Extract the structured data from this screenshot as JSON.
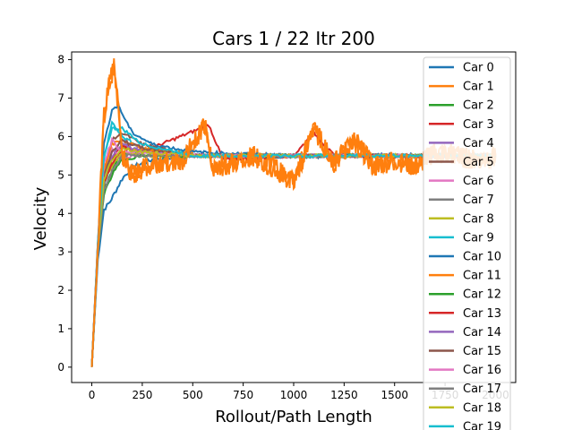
{
  "chart_data": {
    "type": "line",
    "title": "Cars 1 / 22 Itr 200",
    "xlabel": "Rollout/Path Length",
    "ylabel": "Velocity",
    "xlim": [
      -100,
      2100
    ],
    "ylim": [
      -0.4,
      8.2
    ],
    "xticks": [
      0,
      250,
      500,
      750,
      1000,
      1250,
      1500,
      1750,
      2000
    ],
    "yticks": [
      0,
      1,
      2,
      3,
      4,
      5,
      6,
      7,
      8
    ],
    "grid": false,
    "legend_placement": "top-right",
    "colors": [
      "#1f77b4",
      "#ff7f0e",
      "#2ca02c",
      "#d62728",
      "#9467bd",
      "#8c564b",
      "#e377c2",
      "#7f7f7f",
      "#bcbd22",
      "#17becf"
    ],
    "series": [
      {
        "name": "Car 0",
        "x": [
          0,
          30,
          60,
          90,
          120,
          150,
          200,
          300,
          500,
          750,
          1000,
          1250,
          1500,
          1750,
          2000
        ],
        "y": [
          0,
          2.8,
          4.1,
          4.3,
          4.6,
          4.9,
          5.2,
          5.4,
          5.5,
          5.5,
          5.5,
          5.5,
          5.5,
          5.5,
          5.5
        ]
      },
      {
        "name": "Car 1",
        "x": [
          0,
          30,
          60,
          80,
          100,
          110,
          130,
          150,
          200,
          300,
          450,
          560,
          600,
          700,
          800,
          900,
          1000,
          1100,
          1200,
          1300,
          1400,
          1500,
          1600,
          1700,
          1800,
          1900,
          2000
        ],
        "y": [
          0,
          3.2,
          6.5,
          7.2,
          7.6,
          7.8,
          6.8,
          5.5,
          5.0,
          5.3,
          5.4,
          6.3,
          5.2,
          5.3,
          5.5,
          5.2,
          4.8,
          6.2,
          5.3,
          5.9,
          5.2,
          5.4,
          5.2,
          5.6,
          5.5,
          5.4,
          5.5
        ]
      },
      {
        "name": "Car 2",
        "x": [
          0,
          30,
          60,
          100,
          150,
          250,
          500,
          1000,
          2000
        ],
        "y": [
          0,
          3.0,
          4.6,
          5.1,
          5.6,
          5.5,
          5.5,
          5.5,
          5.5
        ]
      },
      {
        "name": "Car 3",
        "x": [
          0,
          30,
          60,
          100,
          150,
          250,
          580,
          650,
          1000,
          1100,
          1200,
          2000
        ],
        "y": [
          0,
          3.1,
          4.8,
          5.4,
          5.8,
          5.6,
          6.3,
          5.4,
          5.5,
          6.1,
          5.5,
          5.5
        ]
      },
      {
        "name": "Car 4",
        "x": [
          0,
          30,
          60,
          100,
          150,
          250,
          500,
          1000,
          2000
        ],
        "y": [
          0,
          3.0,
          4.9,
          5.6,
          5.9,
          5.7,
          5.5,
          5.5,
          5.5
        ]
      },
      {
        "name": "Car 5",
        "x": [
          0,
          30,
          60,
          100,
          150,
          250,
          500,
          1000,
          2000
        ],
        "y": [
          0,
          3.1,
          5.0,
          5.9,
          6.1,
          5.8,
          5.5,
          5.5,
          5.5
        ]
      },
      {
        "name": "Car 6",
        "x": [
          0,
          30,
          60,
          100,
          150,
          250,
          500,
          1000,
          2000
        ],
        "y": [
          0,
          3.2,
          5.2,
          5.7,
          5.4,
          5.6,
          5.5,
          5.5,
          5.5
        ]
      },
      {
        "name": "Car 7",
        "x": [
          0,
          30,
          60,
          100,
          150,
          250,
          500,
          1000,
          2000
        ],
        "y": [
          0,
          3.0,
          4.7,
          5.3,
          5.5,
          5.6,
          5.5,
          5.5,
          5.5
        ]
      },
      {
        "name": "Car 8",
        "x": [
          0,
          30,
          60,
          100,
          150,
          250,
          500,
          1000,
          2000
        ],
        "y": [
          0,
          3.1,
          4.9,
          5.2,
          5.6,
          5.5,
          5.5,
          5.5,
          5.5
        ]
      },
      {
        "name": "Car 9",
        "x": [
          0,
          30,
          60,
          100,
          150,
          250,
          500,
          1000,
          2000
        ],
        "y": [
          0,
          3.2,
          5.4,
          6.4,
          6.0,
          5.7,
          5.5,
          5.5,
          5.5
        ]
      },
      {
        "name": "Car 10",
        "x": [
          0,
          30,
          60,
          100,
          130,
          200,
          300,
          500,
          1000,
          2000
        ],
        "y": [
          0,
          3.3,
          5.8,
          6.7,
          6.8,
          6.1,
          5.8,
          5.6,
          5.5,
          5.5
        ]
      },
      {
        "name": "Car 11",
        "x": [
          0,
          30,
          60,
          100,
          150,
          250,
          500,
          1000,
          2000
        ],
        "y": [
          0,
          3.1,
          5.1,
          5.8,
          5.9,
          5.7,
          5.5,
          5.5,
          5.5
        ]
      },
      {
        "name": "Car 12",
        "x": [
          0,
          30,
          60,
          100,
          150,
          250,
          500,
          1000,
          2000
        ],
        "y": [
          0,
          3.0,
          4.5,
          5.0,
          5.4,
          5.5,
          5.5,
          5.5,
          5.5
        ]
      },
      {
        "name": "Car 13",
        "x": [
          0,
          30,
          60,
          100,
          150,
          250,
          500,
          1000,
          2000
        ],
        "y": [
          0,
          3.1,
          4.8,
          5.3,
          5.7,
          5.6,
          5.5,
          5.5,
          5.5
        ]
      },
      {
        "name": "Car 14",
        "x": [
          0,
          30,
          60,
          100,
          150,
          250,
          500,
          1000,
          2000
        ],
        "y": [
          0,
          3.0,
          4.9,
          5.5,
          5.8,
          5.6,
          5.5,
          5.5,
          5.5
        ]
      },
      {
        "name": "Car 15",
        "x": [
          0,
          30,
          60,
          100,
          150,
          250,
          500,
          1000,
          2000
        ],
        "y": [
          0,
          3.1,
          5.0,
          5.6,
          5.9,
          5.7,
          5.5,
          5.5,
          5.5
        ]
      },
      {
        "name": "Car 16",
        "x": [
          0,
          30,
          60,
          100,
          150,
          250,
          500,
          1000,
          2000
        ],
        "y": [
          0,
          3.2,
          5.3,
          5.9,
          5.6,
          5.6,
          5.5,
          5.5,
          5.5
        ]
      },
      {
        "name": "Car 17",
        "x": [
          0,
          30,
          60,
          100,
          150,
          250,
          500,
          1000,
          2000
        ],
        "y": [
          0,
          3.0,
          4.6,
          5.1,
          5.5,
          5.5,
          5.5,
          5.5,
          5.5
        ]
      },
      {
        "name": "Car 18",
        "x": [
          0,
          30,
          60,
          100,
          150,
          250,
          500,
          1000,
          2000
        ],
        "y": [
          0,
          3.1,
          4.9,
          5.4,
          5.7,
          5.6,
          5.5,
          5.5,
          5.5
        ]
      },
      {
        "name": "Car 19",
        "x": [
          0,
          30,
          60,
          100,
          150,
          250,
          500,
          1000,
          2000
        ],
        "y": [
          0,
          3.2,
          5.5,
          6.2,
          6.2,
          5.8,
          5.5,
          5.5,
          5.5
        ]
      }
    ]
  }
}
